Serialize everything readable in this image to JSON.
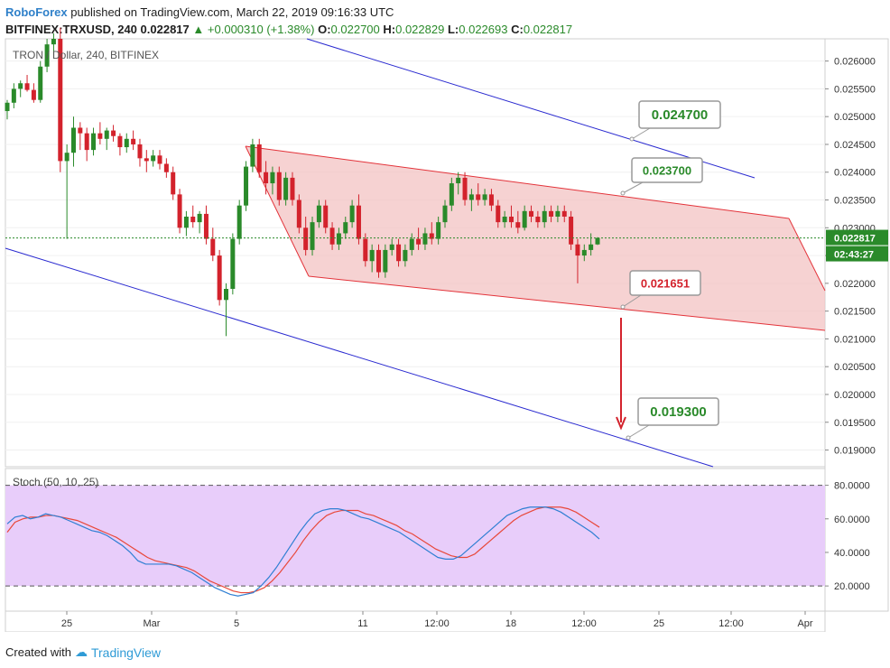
{
  "header": {
    "brand": "RoboForex",
    "published": "published on TradingView.com, March 22, 2019 09:16:33 UTC",
    "symbol": "BITFINEX:TRXUSD, 240",
    "last": "0.022817",
    "change_icon": "triangle-up-icon",
    "change": "+0.000310 (+1.38%)",
    "open_label": "O:",
    "open": "0.022700",
    "high_label": "H:",
    "high": "0.022829",
    "low_label": "L:",
    "low": "0.022693",
    "close_label": "C:",
    "close": "0.022817"
  },
  "footer": {
    "created_with": "Created with",
    "logo_text": "TradingView",
    "logo_icon": "tradingview-cloud-icon"
  },
  "colors": {
    "up": "#2a8a2a",
    "down": "#d3222c",
    "channel_fill": "#f3c3c3",
    "channel_line": "#e3333a",
    "blue_line": "#2a2ad0",
    "stoch_bg": "#e8cdfa",
    "k_line": "#2f7fd3",
    "d_line": "#e8483a"
  },
  "chart_data": {
    "type": "candlestick",
    "title": "TRON / Dollar, 240, BITFINEX",
    "price_ylim": [
      0.0187,
      0.0264
    ],
    "price_ticks": [
      "0.026000",
      "0.025500",
      "0.025000",
      "0.024500",
      "0.024000",
      "0.023500",
      "0.023000",
      "0.022500",
      "0.022000",
      "0.021500",
      "0.021000",
      "0.020500",
      "0.020000",
      "0.019500",
      "0.019000"
    ],
    "x_ticks": [
      "25",
      "Mar",
      "5",
      "11",
      "12:00",
      "18",
      "12:00",
      "25",
      "12:00",
      "Apr"
    ],
    "last_price_label": "0.022817",
    "countdown_label": "02:43:27",
    "candles": [
      [
        0.0251,
        0.0253,
        0.02495,
        0.02525
      ],
      [
        0.02525,
        0.0256,
        0.02515,
        0.0255
      ],
      [
        0.0255,
        0.02565,
        0.02535,
        0.0256
      ],
      [
        0.0256,
        0.02575,
        0.02545,
        0.02548
      ],
      [
        0.02548,
        0.0256,
        0.02525,
        0.0253
      ],
      [
        0.0253,
        0.026,
        0.02525,
        0.0259
      ],
      [
        0.0259,
        0.0264,
        0.0258,
        0.0263
      ],
      [
        0.0263,
        0.0265,
        0.0261,
        0.0264
      ],
      [
        0.0264,
        0.0266,
        0.024,
        0.0242
      ],
      [
        0.0242,
        0.0245,
        0.0228,
        0.02435
      ],
      [
        0.02435,
        0.025,
        0.0241,
        0.0248
      ],
      [
        0.0248,
        0.0249,
        0.0244,
        0.0247
      ],
      [
        0.0247,
        0.0248,
        0.0242,
        0.0244
      ],
      [
        0.0244,
        0.0248,
        0.0243,
        0.0247
      ],
      [
        0.0247,
        0.0249,
        0.0245,
        0.0246
      ],
      [
        0.0246,
        0.0248,
        0.0244,
        0.02475
      ],
      [
        0.02475,
        0.02485,
        0.02455,
        0.02465
      ],
      [
        0.02465,
        0.0247,
        0.0243,
        0.02445
      ],
      [
        0.02445,
        0.0247,
        0.02435,
        0.0246
      ],
      [
        0.0246,
        0.02475,
        0.0244,
        0.0245
      ],
      [
        0.0245,
        0.0246,
        0.0241,
        0.02425
      ],
      [
        0.02425,
        0.0244,
        0.024,
        0.0242
      ],
      [
        0.0242,
        0.0244,
        0.0241,
        0.0243
      ],
      [
        0.0243,
        0.0244,
        0.02405,
        0.02415
      ],
      [
        0.02415,
        0.02425,
        0.0239,
        0.024
      ],
      [
        0.024,
        0.0241,
        0.0235,
        0.0236
      ],
      [
        0.0236,
        0.0237,
        0.0229,
        0.023
      ],
      [
        0.023,
        0.0233,
        0.02285,
        0.0232
      ],
      [
        0.0232,
        0.0234,
        0.023,
        0.0231
      ],
      [
        0.0231,
        0.0233,
        0.0229,
        0.02325
      ],
      [
        0.02325,
        0.0234,
        0.0227,
        0.0228
      ],
      [
        0.0228,
        0.023,
        0.0224,
        0.0225
      ],
      [
        0.0225,
        0.0226,
        0.0216,
        0.0217
      ],
      [
        0.0217,
        0.022,
        0.02105,
        0.0219
      ],
      [
        0.0219,
        0.0229,
        0.0218,
        0.0228
      ],
      [
        0.0228,
        0.0235,
        0.0227,
        0.0234
      ],
      [
        0.0234,
        0.0242,
        0.0233,
        0.0241
      ],
      [
        0.0241,
        0.0246,
        0.024,
        0.0245
      ],
      [
        0.0245,
        0.0246,
        0.0239,
        0.024
      ],
      [
        0.024,
        0.0242,
        0.0236,
        0.0238
      ],
      [
        0.0238,
        0.0241,
        0.0236,
        0.024
      ],
      [
        0.024,
        0.0241,
        0.0234,
        0.0235
      ],
      [
        0.0235,
        0.024,
        0.0234,
        0.0239
      ],
      [
        0.0239,
        0.024,
        0.0234,
        0.0235
      ],
      [
        0.0235,
        0.0236,
        0.0229,
        0.023
      ],
      [
        0.023,
        0.0232,
        0.0225,
        0.0226
      ],
      [
        0.0226,
        0.0232,
        0.0225,
        0.0231
      ],
      [
        0.0231,
        0.0235,
        0.023,
        0.0234
      ],
      [
        0.0234,
        0.0235,
        0.0229,
        0.023
      ],
      [
        0.023,
        0.0231,
        0.0226,
        0.0227
      ],
      [
        0.0227,
        0.023,
        0.0226,
        0.0229
      ],
      [
        0.0229,
        0.0232,
        0.0228,
        0.0231
      ],
      [
        0.0231,
        0.0235,
        0.023,
        0.0234
      ],
      [
        0.0234,
        0.0236,
        0.0227,
        0.0228
      ],
      [
        0.0228,
        0.0229,
        0.0223,
        0.0224
      ],
      [
        0.0224,
        0.0227,
        0.0222,
        0.0226
      ],
      [
        0.0226,
        0.0227,
        0.0221,
        0.0222
      ],
      [
        0.0222,
        0.0227,
        0.0221,
        0.0226
      ],
      [
        0.0226,
        0.0228,
        0.0225,
        0.0227
      ],
      [
        0.0227,
        0.0228,
        0.0223,
        0.0224
      ],
      [
        0.0224,
        0.0227,
        0.0223,
        0.0226
      ],
      [
        0.0226,
        0.0229,
        0.0225,
        0.0228
      ],
      [
        0.0228,
        0.023,
        0.0226,
        0.0227
      ],
      [
        0.0227,
        0.023,
        0.0226,
        0.0229
      ],
      [
        0.0229,
        0.0231,
        0.0227,
        0.0228
      ],
      [
        0.0228,
        0.0232,
        0.0227,
        0.0231
      ],
      [
        0.0231,
        0.0235,
        0.023,
        0.0234
      ],
      [
        0.0234,
        0.0239,
        0.0233,
        0.0238
      ],
      [
        0.0238,
        0.024,
        0.0236,
        0.0239
      ],
      [
        0.0239,
        0.024,
        0.0234,
        0.0235
      ],
      [
        0.0235,
        0.0237,
        0.0233,
        0.0236
      ],
      [
        0.0236,
        0.0238,
        0.0234,
        0.0235
      ],
      [
        0.0235,
        0.0237,
        0.0234,
        0.0236
      ],
      [
        0.0236,
        0.0237,
        0.0233,
        0.0234
      ],
      [
        0.0234,
        0.0235,
        0.023,
        0.0231
      ],
      [
        0.0231,
        0.0233,
        0.023,
        0.0232
      ],
      [
        0.0232,
        0.0234,
        0.023,
        0.0231
      ],
      [
        0.0231,
        0.0233,
        0.0229,
        0.023
      ],
      [
        0.023,
        0.0234,
        0.02295,
        0.0233
      ],
      [
        0.0233,
        0.0234,
        0.0231,
        0.0232
      ],
      [
        0.0232,
        0.0233,
        0.023,
        0.0231
      ],
      [
        0.0231,
        0.0234,
        0.023,
        0.0233
      ],
      [
        0.0233,
        0.0234,
        0.0231,
        0.0232
      ],
      [
        0.0232,
        0.0234,
        0.0231,
        0.0233
      ],
      [
        0.0233,
        0.0234,
        0.0231,
        0.0232
      ],
      [
        0.0232,
        0.0233,
        0.0226,
        0.0227
      ],
      [
        0.0227,
        0.0228,
        0.022,
        0.0225
      ],
      [
        0.0225,
        0.0227,
        0.0224,
        0.0226
      ],
      [
        0.0226,
        0.0229,
        0.0225,
        0.0227
      ],
      [
        0.0227,
        0.02283,
        0.02269,
        0.022817
      ]
    ],
    "channel": {
      "upper": [
        [
          0.02455,
          0.02325
        ]
      ],
      "lower": [
        [
          0.0222,
          0.02125
        ]
      ]
    },
    "blue_channel": {
      "upper": [
        0.0263,
        0.024
      ],
      "lower": [
        0.0228,
        0.0188
      ]
    },
    "callouts": [
      {
        "text": "0.024700",
        "color": "#2a8a2a"
      },
      {
        "text": "0.023700",
        "color": "#2a8a2a"
      },
      {
        "text": "0.021651",
        "color": "#d3222c"
      },
      {
        "text": "0.019300",
        "color": "#2a8a2a"
      }
    ],
    "stoch": {
      "title": "Stoch (50, 10, 25)",
      "ylim": [
        5,
        90
      ],
      "ticks": [
        "80.0000",
        "60.0000",
        "40.0000",
        "20.0000"
      ],
      "levels": [
        80,
        20
      ],
      "k": [
        57,
        61,
        62,
        60,
        61,
        63,
        62,
        61,
        59,
        57,
        55,
        53,
        52,
        50,
        47,
        44,
        40,
        35,
        33,
        33,
        33,
        33,
        32,
        30,
        28,
        25,
        22,
        19,
        17,
        15,
        14,
        15,
        16,
        20,
        25,
        31,
        38,
        45,
        52,
        58,
        63,
        65,
        66,
        66,
        65,
        63,
        61,
        60,
        58,
        56,
        54,
        52,
        49,
        46,
        43,
        40,
        37,
        36,
        36,
        38,
        42,
        46,
        50,
        54,
        58,
        62,
        64,
        66,
        67,
        67,
        67,
        66,
        64,
        61,
        58,
        55,
        52,
        48
      ],
      "d": [
        52,
        58,
        60,
        61,
        61,
        62,
        62,
        61,
        60,
        59,
        57,
        55,
        53,
        51,
        49,
        46,
        43,
        40,
        37,
        35,
        34,
        33,
        32,
        31,
        29,
        26,
        23,
        21,
        19,
        17,
        16,
        16,
        17,
        19,
        23,
        28,
        34,
        40,
        47,
        53,
        58,
        62,
        64,
        65,
        65,
        65,
        63,
        62,
        60,
        58,
        56,
        53,
        51,
        48,
        45,
        42,
        40,
        38,
        37,
        37,
        39,
        43,
        47,
        51,
        55,
        59,
        62,
        64,
        66,
        67,
        67,
        67,
        66,
        64,
        61,
        58,
        55
      ]
    }
  }
}
